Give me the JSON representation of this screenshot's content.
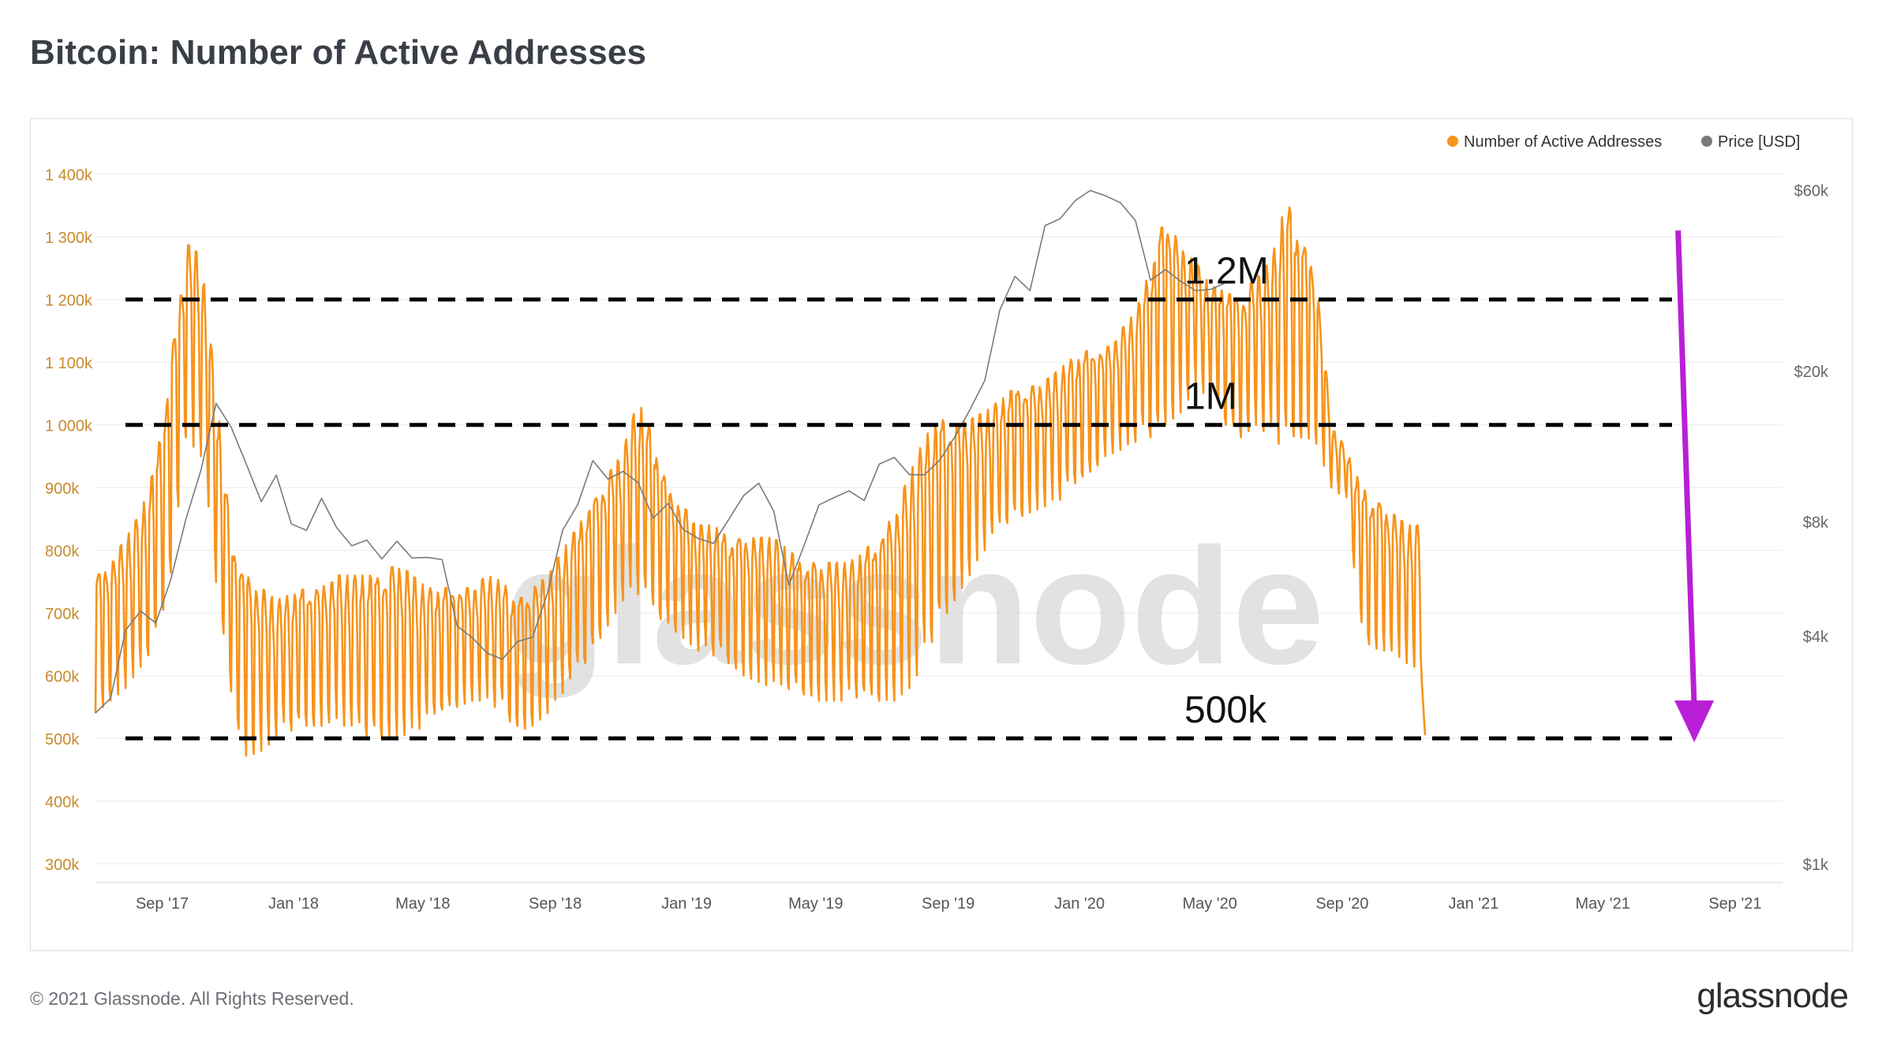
{
  "title": "Bitcoin: Number of Active Addresses",
  "footer": {
    "copyright": "© 2021 Glassnode. All Rights Reserved.",
    "logo_text": "glassnode"
  },
  "watermark": "glassnode",
  "colors": {
    "addresses": "#f7931a",
    "price": "#7a7a7a",
    "arrow": "#b81fd6",
    "reference": "#000000",
    "axis_left": "#c98a2c",
    "axis_right": "#666666"
  },
  "chart_data": {
    "type": "line",
    "title": "Bitcoin: Number of Active Addresses",
    "legend": {
      "position": "top-right",
      "entries": [
        {
          "name": "Number of Active Addresses",
          "color": "#f7931a"
        },
        {
          "name": "Price [USD]",
          "color": "#7a7a7a"
        }
      ]
    },
    "x_ticks": [
      "Sep '17",
      "Jan '18",
      "May '18",
      "Sep '18",
      "Jan '19",
      "May '19",
      "Sep '19",
      "Jan '20",
      "May '20",
      "Sep '20",
      "Jan '21",
      "May '21",
      "Sep '21"
    ],
    "x_range": [
      "2017-07-01",
      "2021-10-15"
    ],
    "y_left": {
      "ticks": [
        "300k",
        "400k",
        "500k",
        "600k",
        "700k",
        "800k",
        "900k",
        "1 000k",
        "1 100k",
        "1 200k",
        "1 300k",
        "1 400k"
      ],
      "range": [
        300000,
        1400000
      ]
    },
    "y_right": {
      "ticks": [
        "$1k",
        "$4k",
        "$8k",
        "$20k",
        "$60k"
      ],
      "scale": "log"
    },
    "reference_lines": [
      {
        "label": "1.2M",
        "value": 1200000
      },
      {
        "label": "1M",
        "value": 1000000
      },
      {
        "label": "500k",
        "value": 500000
      }
    ],
    "annotation": {
      "type": "arrow",
      "direction": "down",
      "from": "2021-07-10",
      "to": "2021-07-25"
    },
    "series": [
      {
        "name": "Number of Active Addresses",
        "step_days": 14,
        "start": "2017-07-01",
        "low": [
          540,
          560,
          580,
          600,
          650,
          760,
          980,
          950,
          740,
          560,
          470,
          480,
          500,
          510,
          520,
          520,
          530,
          510,
          500,
          500,
          500,
          510,
          520,
          540,
          550,
          560,
          560,
          540,
          510,
          520,
          540,
          570,
          600,
          640,
          680,
          720,
          730,
          700,
          680,
          660,
          640,
          630,
          620,
          600,
          590,
          580,
          570,
          570,
          560,
          560,
          560,
          560,
          560,
          560,
          580,
          620,
          680,
          720,
          760,
          800,
          830,
          850,
          860,
          870,
          880,
          900,
          920,
          950,
          960,
          970,
          980,
          1000,
          1020,
          1060,
          1040,
          1000,
          980,
          1000,
          980,
          960,
          980,
          970,
          900,
          880,
          660,
          640,
          640,
          620,
          580
        ],
        "high": [
          760,
          780,
          820,
          860,
          940,
          1100,
          1290,
          1270,
          1060,
          820,
          760,
          740,
          720,
          730,
          740,
          740,
          760,
          760,
          760,
          760,
          780,
          760,
          740,
          740,
          740,
          740,
          760,
          750,
          720,
          740,
          760,
          800,
          840,
          880,
          920,
          960,
          1040,
          980,
          900,
          870,
          840,
          840,
          820,
          820,
          820,
          820,
          800,
          780,
          780,
          780,
          780,
          800,
          820,
          860,
          920,
          980,
          1010,
          1000,
          1010,
          1020,
          1040,
          1060,
          1060,
          1070,
          1090,
          1110,
          1120,
          1120,
          1150,
          1180,
          1250,
          1340,
          1280,
          1260,
          1220,
          1220,
          1200,
          1240,
          1260,
          1360,
          1300,
          1240,
          1000,
          960,
          900,
          880,
          860,
          840,
          840
        ]
      },
      {
        "name": "Price [USD]",
        "start": "2017-07-01",
        "step_days": 14,
        "values": [
          2500,
          2700,
          4200,
          4600,
          4300,
          5700,
          8000,
          11000,
          16500,
          14000,
          11500,
          9000,
          10500,
          8000,
          7500,
          9200,
          7800,
          6800,
          7200,
          6400,
          7000,
          6500,
          6400,
          6300,
          4300,
          3900,
          3600,
          3500,
          3800,
          4000,
          5200,
          7500,
          9000,
          11500,
          10300,
          11000,
          10000,
          8200,
          9000,
          7500,
          7300,
          7000,
          8000,
          9500,
          10000,
          8500,
          5500,
          6800,
          8900,
          9300,
          9500,
          9200,
          11300,
          11700,
          10800,
          10500,
          11600,
          13500,
          15500,
          19000,
          29000,
          35000,
          33000,
          48000,
          50000,
          57000,
          59000,
          58000,
          56000,
          49000,
          35000,
          37000,
          34000,
          33000,
          32500,
          34000
        ]
      }
    ]
  }
}
